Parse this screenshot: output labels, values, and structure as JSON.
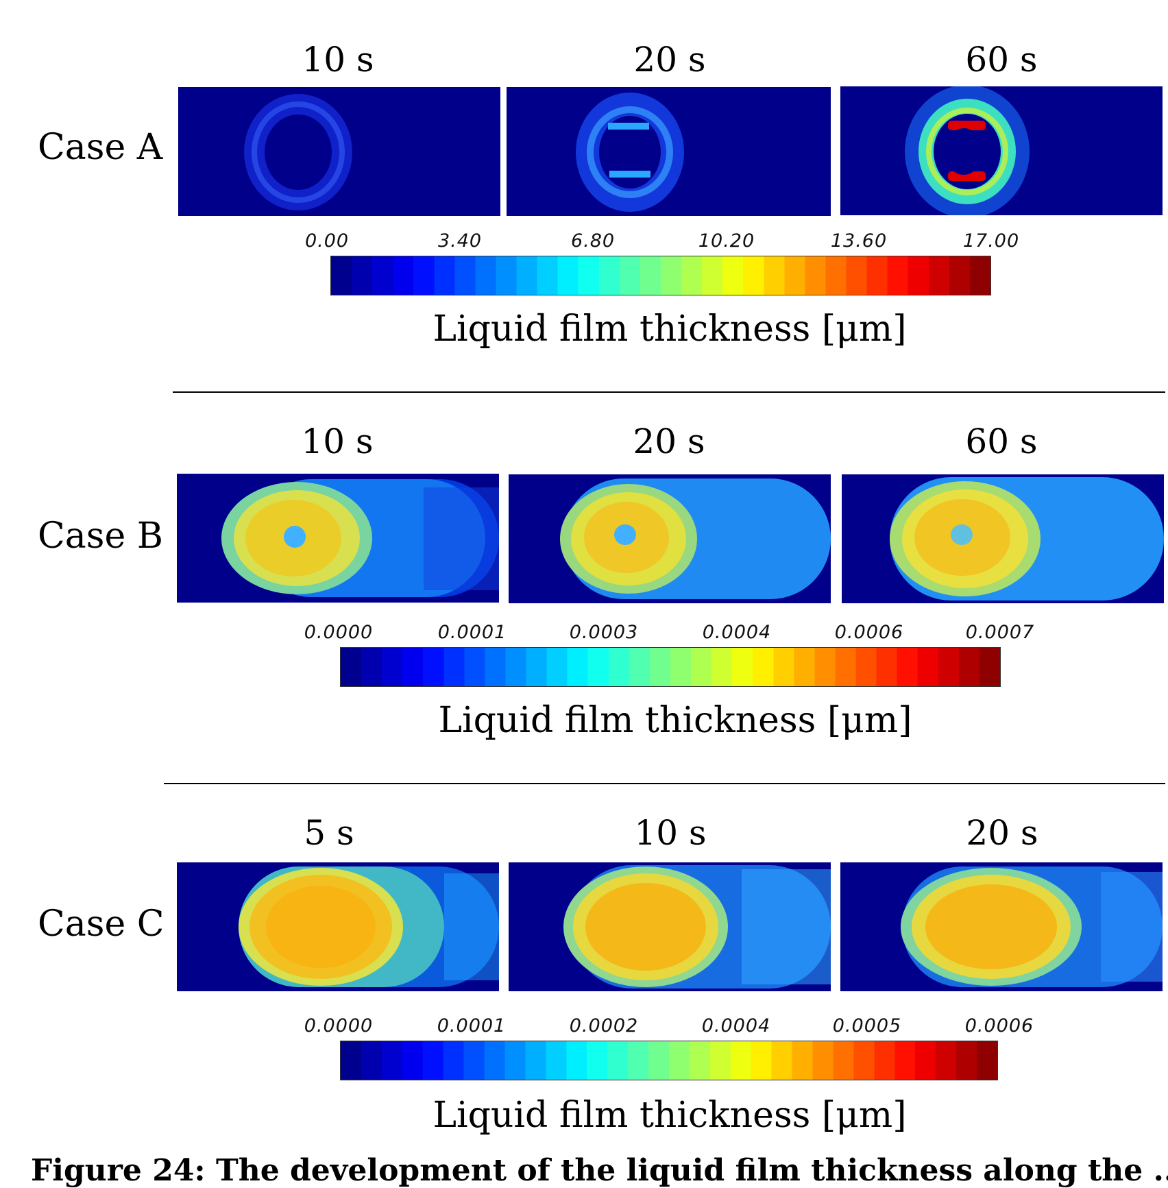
{
  "colorbar_label": "Liquid film thickness [μm]",
  "cases": [
    {
      "label": "Case A",
      "times": [
        "10 s",
        "20 s",
        "60 s"
      ],
      "ticks": [
        "0.00",
        "3.40",
        "6.80",
        "10.20",
        "13.60",
        "17.00"
      ]
    },
    {
      "label": "Case B",
      "times": [
        "10 s",
        "20 s",
        "60 s"
      ],
      "ticks": [
        "0.0000",
        "0.0001",
        "0.0003",
        "0.0004",
        "0.0006",
        "0.0007"
      ]
    },
    {
      "label": "Case C",
      "times": [
        "5 s",
        "10 s",
        "20 s"
      ],
      "ticks": [
        "0.0000",
        "0.0001",
        "0.0002",
        "0.0004",
        "0.0005",
        "0.0006"
      ]
    }
  ],
  "caption": "Figure 24: The development of the liquid film thickness along the ... ",
  "colors": {
    "background_field": "#00008a",
    "colormap": "jet"
  }
}
